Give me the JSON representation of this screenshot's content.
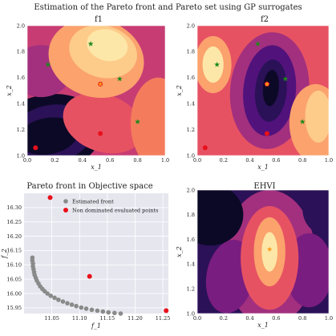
{
  "suptitle": "Estimation of the Pareto front and Pareto set using GP surrogates",
  "colors": {
    "magma": [
      "#0c0927",
      "#2b1157",
      "#51127c",
      "#7a1d80",
      "#a2307e",
      "#c73d73",
      "#e75263",
      "#f47c5d",
      "#fba26d",
      "#fdcb8a",
      "#fde7a8"
    ],
    "red_point": "#e8101a",
    "green_star": "#1c8a1c",
    "orange_star": "#ff9a1a",
    "grey_point": "#8a8a8a",
    "objective_bg": "#e6e6ef"
  },
  "chart_data": [
    {
      "id": "f1",
      "type": "heatmap",
      "title": "f_1",
      "title_display": "f1",
      "xlabel": "x_1",
      "ylabel": "x_2",
      "xlim": [
        0.0,
        1.0
      ],
      "ylim": [
        1.0,
        2.0
      ],
      "xticks": [
        "0.0",
        "0.2",
        "0.4",
        "0.6",
        "0.8",
        "1.0"
      ],
      "yticks": [
        "1.0",
        "1.2",
        "1.4",
        "1.6",
        "1.8",
        "2.0"
      ],
      "colormap": "magma",
      "regions": [
        {
          "cx": 0.15,
          "cy": 1.17,
          "rx": 0.4,
          "ry": 0.3,
          "rot": -10,
          "level": 0
        },
        {
          "cx": 0.18,
          "cy": 1.17,
          "rx": 0.3,
          "ry": 0.22,
          "rot": -10,
          "level": 1
        },
        {
          "cx": 0.15,
          "cy": 1.15,
          "rx": 0.22,
          "ry": 0.14,
          "rot": -10,
          "level": 0
        },
        {
          "cx": 0.1,
          "cy": 1.65,
          "rx": 0.22,
          "ry": 0.2,
          "rot": 0,
          "level": 4
        },
        {
          "cx": 0.55,
          "cy": 1.25,
          "rx": 0.3,
          "ry": 0.22,
          "rot": 20,
          "level": 6
        },
        {
          "cx": 0.95,
          "cy": 1.25,
          "rx": 0.2,
          "ry": 0.35,
          "rot": 0,
          "level": 7
        },
        {
          "cx": 0.5,
          "cy": 1.75,
          "rx": 0.35,
          "ry": 0.3,
          "rot": 15,
          "level": 8
        },
        {
          "cx": 0.55,
          "cy": 1.8,
          "rx": 0.25,
          "ry": 0.2,
          "rot": 15,
          "level": 9
        },
        {
          "cx": 0.58,
          "cy": 1.85,
          "rx": 0.15,
          "ry": 0.12,
          "rot": 15,
          "level": 10
        }
      ],
      "base_level": 5,
      "green_stars": [
        [
          0.15,
          1.7
        ],
        [
          0.46,
          1.86
        ],
        [
          0.67,
          1.59
        ],
        [
          0.8,
          1.26
        ]
      ],
      "orange_star": [
        0.53,
        1.55
      ],
      "red_points": [
        [
          0.06,
          1.06
        ],
        [
          0.53,
          1.17
        ],
        [
          0.53,
          1.55
        ]
      ]
    },
    {
      "id": "f2",
      "type": "heatmap",
      "title": "f_2",
      "title_display": "f2",
      "xlabel": "x_1",
      "ylabel": "x_2",
      "xlim": [
        0.0,
        1.0
      ],
      "ylim": [
        1.0,
        2.0
      ],
      "xticks": [
        "0.0",
        "0.2",
        "0.4",
        "0.6",
        "0.8",
        "1.0"
      ],
      "yticks": [
        "1.0",
        "1.2",
        "1.4",
        "1.6",
        "1.8",
        "2.0"
      ],
      "colormap": "magma",
      "regions": [
        {
          "cx": 0.55,
          "cy": 1.5,
          "rx": 0.3,
          "ry": 0.45,
          "rot": 5,
          "level": 4
        },
        {
          "cx": 0.55,
          "cy": 1.5,
          "rx": 0.2,
          "ry": 0.35,
          "rot": 5,
          "level": 2
        },
        {
          "cx": 0.56,
          "cy": 1.5,
          "rx": 0.12,
          "ry": 0.24,
          "rot": 5,
          "level": 1
        },
        {
          "cx": 0.56,
          "cy": 1.52,
          "rx": 0.06,
          "ry": 0.14,
          "rot": 5,
          "level": 0
        },
        {
          "cx": 0.12,
          "cy": 1.7,
          "rx": 0.14,
          "ry": 0.22,
          "rot": 0,
          "level": 8
        },
        {
          "cx": 0.12,
          "cy": 1.7,
          "rx": 0.08,
          "ry": 0.14,
          "rot": 0,
          "level": 10
        },
        {
          "cx": 0.9,
          "cy": 1.25,
          "rx": 0.2,
          "ry": 0.3,
          "rot": 0,
          "level": 8
        },
        {
          "cx": 0.92,
          "cy": 1.3,
          "rx": 0.1,
          "ry": 0.2,
          "rot": 0,
          "level": 9
        }
      ],
      "base_level": 6,
      "green_stars": [
        [
          0.15,
          1.7
        ],
        [
          0.46,
          1.86
        ],
        [
          0.67,
          1.59
        ],
        [
          0.8,
          1.26
        ]
      ],
      "orange_star": [
        0.53,
        1.55
      ],
      "red_points": [
        [
          0.06,
          1.06
        ],
        [
          0.53,
          1.17
        ],
        [
          0.53,
          1.55
        ]
      ]
    },
    {
      "id": "objective",
      "type": "scatter",
      "title": "Pareto front in Objective space",
      "xlabel": "f_1",
      "ylabel": "f_2",
      "xlim": [
        11.0,
        11.26
      ],
      "ylim": [
        15.93,
        16.35
      ],
      "xticks": [
        11.05,
        11.1,
        11.15,
        11.2,
        11.25
      ],
      "xtick_labels": [
        "11.05",
        "11.10",
        "11.15",
        "11.20",
        "11.25"
      ],
      "yticks": [
        15.95,
        16.0,
        16.05,
        16.1,
        16.15,
        16.2,
        16.25,
        16.3
      ],
      "ytick_labels": [
        "15.95",
        "16.00",
        "16.05",
        "16.10",
        "16.15",
        "16.20",
        "16.25",
        "16.30"
      ],
      "legend_position": "top-right",
      "series": [
        {
          "name": "Estimated front",
          "x": [
            11.015,
            11.015,
            11.016,
            11.016,
            11.017,
            11.018,
            11.019,
            11.021,
            11.023,
            11.026,
            11.029,
            11.033,
            11.037,
            11.042,
            11.048,
            11.055,
            11.062,
            11.07,
            11.078,
            11.086,
            11.094,
            11.103,
            11.112,
            11.122,
            11.132,
            11.142,
            11.152,
            11.163,
            11.174
          ],
          "y": [
            16.125,
            16.115,
            16.105,
            16.095,
            16.085,
            16.075,
            16.065,
            16.055,
            16.045,
            16.035,
            16.025,
            16.016,
            16.008,
            16.0,
            15.992,
            15.985,
            15.978,
            15.972,
            15.966,
            15.961,
            15.956,
            15.951,
            15.947,
            15.943,
            15.94,
            15.937,
            15.934,
            15.932,
            15.93
          ]
        },
        {
          "name": "Non dominated evaluated points",
          "x": [
            11.047,
            11.118,
            11.256
          ],
          "y": [
            16.335,
            16.06,
            15.94
          ]
        }
      ]
    },
    {
      "id": "ehvi",
      "type": "heatmap",
      "title": "EHVI",
      "xlabel": "x_1",
      "ylabel": "x_2",
      "xlim": [
        0.0,
        1.0
      ],
      "ylim": [
        1.0,
        2.0
      ],
      "xticks": [
        "0.0",
        "0.2",
        "0.4",
        "0.6",
        "0.8",
        "1.0"
      ],
      "yticks": [
        "1.0",
        "1.2",
        "1.4",
        "1.6",
        "1.8",
        "2.0"
      ],
      "colormap": "magma",
      "regions": [
        {
          "cx": 0.55,
          "cy": 1.45,
          "rx": 0.35,
          "ry": 0.55,
          "rot": 0,
          "level": 4
        },
        {
          "cx": 0.25,
          "cy": 1.3,
          "rx": 0.18,
          "ry": 0.3,
          "rot": 10,
          "level": 3
        },
        {
          "cx": 0.85,
          "cy": 1.35,
          "rx": 0.18,
          "ry": 0.3,
          "rot": 0,
          "level": 3
        },
        {
          "cx": 0.55,
          "cy": 1.45,
          "rx": 0.22,
          "ry": 0.42,
          "rot": 0,
          "level": 6
        },
        {
          "cx": 0.55,
          "cy": 1.5,
          "rx": 0.12,
          "ry": 0.28,
          "rot": 0,
          "level": 8
        },
        {
          "cx": 0.55,
          "cy": 1.5,
          "rx": 0.06,
          "ry": 0.16,
          "rot": 0,
          "level": 10
        },
        {
          "cx": 0.1,
          "cy": 1.8,
          "rx": 0.25,
          "ry": 0.25,
          "rot": 0,
          "level": 0
        },
        {
          "cx": 0.95,
          "cy": 1.85,
          "rx": 0.15,
          "ry": 0.2,
          "rot": 0,
          "level": 1
        }
      ],
      "base_level": 1,
      "orange_star": [
        0.55,
        1.52
      ]
    }
  ]
}
